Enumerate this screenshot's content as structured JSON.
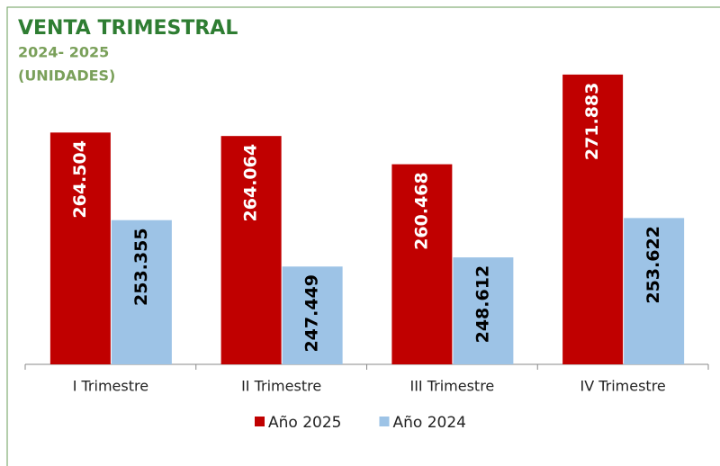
{
  "chart_data": {
    "type": "bar",
    "title": "VENTA TRIMESTRAL",
    "subtitle": [
      "2024- 2025",
      "(UNIDADES)"
    ],
    "categories": [
      "I Trimestre",
      "II Trimestre",
      "III Trimestre",
      "IV Trimestre"
    ],
    "series": [
      {
        "name": "Año 2025",
        "color": "#c00000",
        "label_color": "#ffffff",
        "values": [
          264504,
          264064,
          260468,
          271883
        ],
        "value_labels": [
          "264.504",
          "264.064",
          "260.468",
          "271.883"
        ]
      },
      {
        "name": "Año 2024",
        "color": "#9dc3e6",
        "label_color": "#000000",
        "values": [
          253355,
          247449,
          248612,
          253622
        ],
        "value_labels": [
          "253.355",
          "247.449",
          "248.612",
          "253.622"
        ]
      }
    ],
    "ylim": [
      235000,
      280000
    ],
    "legend": "bottom"
  }
}
